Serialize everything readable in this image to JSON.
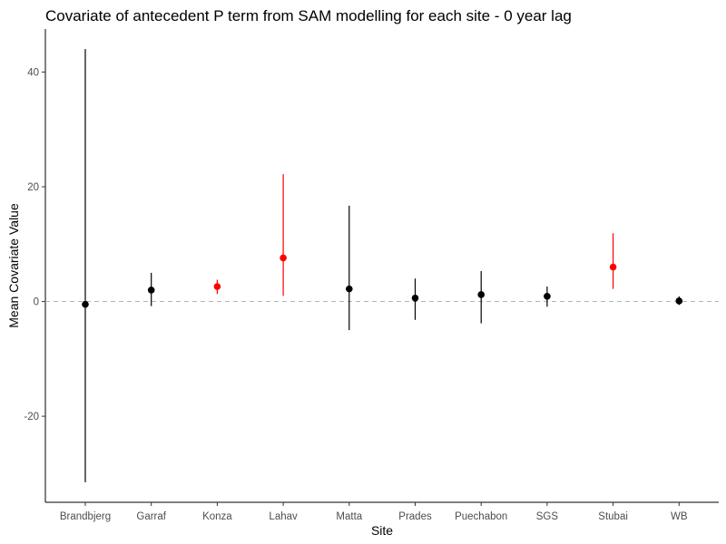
{
  "chart_data": {
    "type": "scatter",
    "title": "Covariate of antecedent P term from SAM modelling for each site - 0 year lag",
    "xlabel": "Site",
    "ylabel": "Mean Covariate Value",
    "categories": [
      "Brandbjerg",
      "Garraf",
      "Konza",
      "Lahav",
      "Matta",
      "Prades",
      "Puechabon",
      "SGS",
      "Stubai",
      "WB"
    ],
    "mean": [
      -0.5,
      2.0,
      2.6,
      7.6,
      2.2,
      0.6,
      1.2,
      0.9,
      6.0,
      0.1
    ],
    "lower": [
      -31.5,
      -0.8,
      1.3,
      1.0,
      -5.0,
      -3.2,
      -3.8,
      -0.9,
      2.2,
      -0.6
    ],
    "upper": [
      44.0,
      5.0,
      3.8,
      22.2,
      16.7,
      4.0,
      5.3,
      2.6,
      11.9,
      0.9
    ],
    "significant": [
      false,
      false,
      true,
      true,
      false,
      false,
      false,
      false,
      true,
      false
    ],
    "yticks": [
      -20,
      0,
      20,
      40
    ],
    "ylim": [
      -35,
      47.5
    ],
    "reference_line": 0,
    "colors": {
      "significant": "#ff0000",
      "default": "#000000",
      "reference": "#b3b3b3"
    },
    "grid": false,
    "legend": "none"
  }
}
